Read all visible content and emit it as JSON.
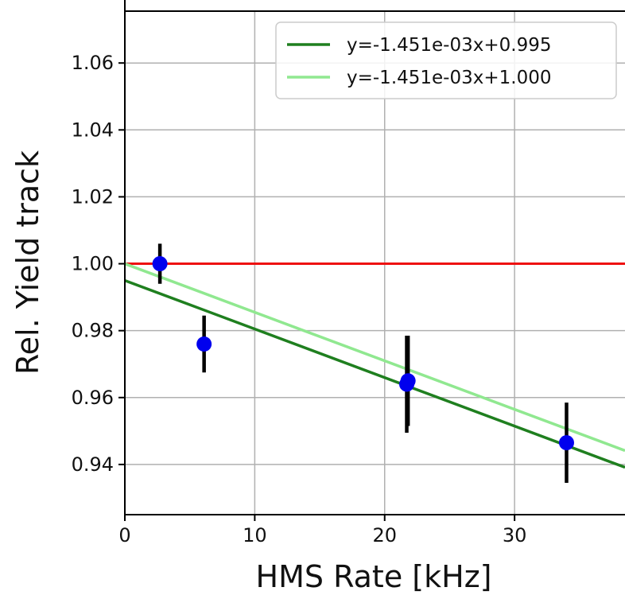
{
  "chart_data": {
    "type": "scatter",
    "title": "",
    "xlabel": "HMS Rate [kHz]",
    "ylabel": "Rel. Yield track",
    "xlim": [
      0,
      38.5
    ],
    "ylim": [
      0.925,
      1.0755
    ],
    "xticks": [
      0,
      10,
      20,
      30
    ],
    "xtick_labels": [
      "0",
      "10",
      "20",
      "30"
    ],
    "yticks": [
      0.94,
      0.96,
      0.98,
      1.0,
      1.02,
      1.04,
      1.06
    ],
    "ytick_labels": [
      "0.94",
      "0.96",
      "0.98",
      "1.00",
      "1.02",
      "1.04",
      "1.06"
    ],
    "grid": true,
    "legend_position": "top-right",
    "points": [
      {
        "x": 2.7,
        "y": 1.0,
        "err": 0.006
      },
      {
        "x": 6.1,
        "y": 0.976,
        "err": 0.0085
      },
      {
        "x": 21.7,
        "y": 0.964,
        "err": 0.0145
      },
      {
        "x": 21.8,
        "y": 0.965,
        "err": 0.0135
      },
      {
        "x": 34.0,
        "y": 0.9465,
        "err": 0.012
      }
    ],
    "point_color": "#0000ee",
    "errorbar_color": "#000000",
    "reference_line": {
      "y": 1.0,
      "color": "#ee1111"
    },
    "fits": [
      {
        "name": "y=-1.451e-03x+0.995",
        "slope": -0.001451,
        "intercept": 0.995,
        "color": "#1f7f1f"
      },
      {
        "name": "y=-1.451e-03x+1.000",
        "slope": -0.001451,
        "intercept": 1.0,
        "color": "#90e890"
      }
    ]
  }
}
